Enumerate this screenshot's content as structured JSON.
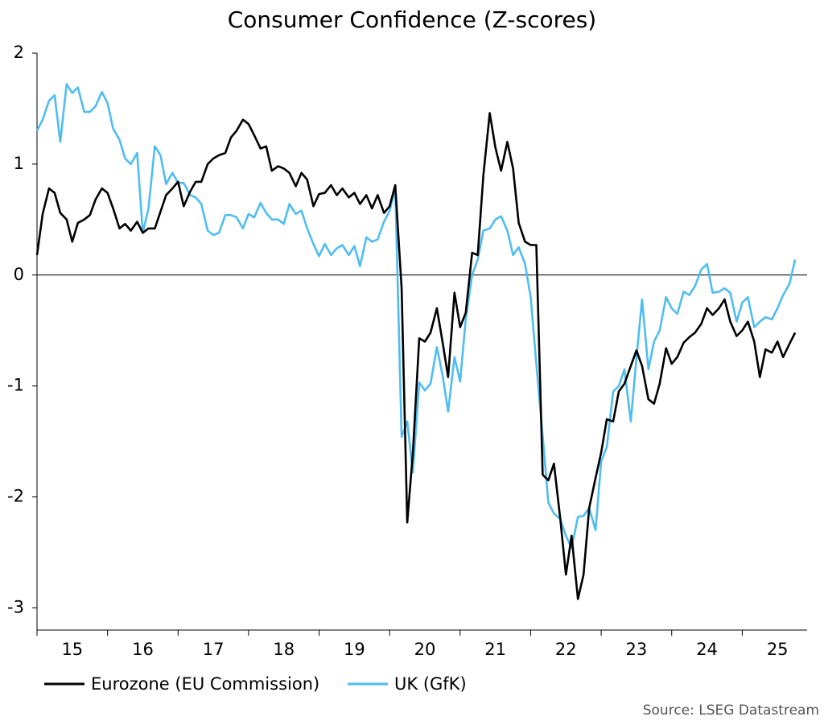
{
  "chart_data": {
    "type": "line",
    "title": "Consumer Confidence (Z-scores)",
    "source": "Source: LSEG Datastream",
    "xlim": [
      15,
      25.92
    ],
    "ylim": [
      -3.2,
      2
    ],
    "xticks": [
      {
        "value": 15.5,
        "label": "15"
      },
      {
        "value": 16.5,
        "label": "16"
      },
      {
        "value": 17.5,
        "label": "17"
      },
      {
        "value": 18.5,
        "label": "18"
      },
      {
        "value": 19.5,
        "label": "19"
      },
      {
        "value": 20.5,
        "label": "20"
      },
      {
        "value": 21.5,
        "label": "21"
      },
      {
        "value": 22.5,
        "label": "22"
      },
      {
        "value": 23.5,
        "label": "23"
      },
      {
        "value": 24.5,
        "label": "24"
      },
      {
        "value": 25.5,
        "label": "25"
      }
    ],
    "yticks": [
      -3,
      -2,
      -1,
      0,
      1,
      2
    ],
    "zero_line": true,
    "x": [
      15.0,
      15.08,
      15.17,
      15.25,
      15.33,
      15.42,
      15.5,
      15.58,
      15.67,
      15.75,
      15.83,
      15.92,
      16.0,
      16.08,
      16.17,
      16.25,
      16.33,
      16.42,
      16.5,
      16.58,
      16.67,
      16.75,
      16.83,
      16.92,
      17.0,
      17.08,
      17.17,
      17.25,
      17.33,
      17.42,
      17.5,
      17.58,
      17.67,
      17.75,
      17.83,
      17.92,
      18.0,
      18.08,
      18.17,
      18.25,
      18.33,
      18.42,
      18.5,
      18.58,
      18.67,
      18.75,
      18.83,
      18.92,
      19.0,
      19.08,
      19.17,
      19.25,
      19.33,
      19.42,
      19.5,
      19.58,
      19.67,
      19.75,
      19.83,
      19.92,
      20.0,
      20.08,
      20.17,
      20.25,
      20.33,
      20.42,
      20.5,
      20.58,
      20.67,
      20.75,
      20.83,
      20.92,
      21.0,
      21.08,
      21.17,
      21.25,
      21.33,
      21.42,
      21.5,
      21.58,
      21.67,
      21.75,
      21.83,
      21.92,
      22.0,
      22.08,
      22.17,
      22.25,
      22.33,
      22.42,
      22.5,
      22.58,
      22.67,
      22.75,
      22.83,
      22.92,
      23.0,
      23.08,
      23.17,
      23.25,
      23.33,
      23.42,
      23.5,
      23.58,
      23.67,
      23.75,
      23.83,
      23.92,
      24.0,
      24.08,
      24.17,
      24.25,
      24.33,
      24.42,
      24.5,
      24.58,
      24.67,
      24.75,
      24.83,
      24.92,
      25.0,
      25.08,
      25.17,
      25.25,
      25.33,
      25.42,
      25.5,
      25.58,
      25.67,
      25.75
    ],
    "series": [
      {
        "name": "Eurozone (EU Commission)",
        "color": "#000000",
        "values": [
          0.18,
          0.55,
          0.78,
          0.74,
          0.56,
          0.5,
          0.3,
          0.47,
          0.5,
          0.54,
          0.68,
          0.78,
          0.74,
          0.6,
          0.42,
          0.46,
          0.4,
          0.48,
          0.38,
          0.42,
          0.42,
          0.57,
          0.72,
          0.78,
          0.84,
          0.62,
          0.75,
          0.84,
          0.84,
          1.0,
          1.05,
          1.08,
          1.1,
          1.24,
          1.3,
          1.4,
          1.36,
          1.26,
          1.14,
          1.16,
          0.94,
          0.98,
          0.96,
          0.92,
          0.8,
          0.92,
          0.86,
          0.62,
          0.73,
          0.74,
          0.81,
          0.72,
          0.78,
          0.7,
          0.74,
          0.64,
          0.72,
          0.6,
          0.72,
          0.56,
          0.62,
          0.81,
          -0.12,
          -2.23,
          -1.6,
          -0.57,
          -0.6,
          -0.52,
          -0.3,
          -0.6,
          -0.92,
          -0.16,
          -0.47,
          -0.34,
          0.2,
          0.18,
          0.9,
          1.46,
          1.15,
          0.94,
          1.2,
          0.96,
          0.47,
          0.3,
          0.27,
          0.27,
          -1.8,
          -1.85,
          -1.7,
          -2.2,
          -2.7,
          -2.35,
          -2.92,
          -2.7,
          -2.1,
          -1.83,
          -1.6,
          -1.3,
          -1.32,
          -1.05,
          -0.98,
          -0.82,
          -0.68,
          -0.82,
          -1.12,
          -1.16,
          -0.98,
          -0.66,
          -0.8,
          -0.74,
          -0.61,
          -0.56,
          -0.52,
          -0.44,
          -0.3,
          -0.36,
          -0.3,
          -0.22,
          -0.42,
          -0.55,
          -0.5,
          -0.42,
          -0.6,
          -0.92,
          -0.67,
          -0.7,
          -0.6,
          -0.74,
          -0.62,
          -0.52
        ]
      },
      {
        "name": "UK (GfK)",
        "color": "#4fbdf2",
        "values": [
          1.3,
          1.4,
          1.57,
          1.62,
          1.2,
          1.72,
          1.64,
          1.69,
          1.47,
          1.47,
          1.52,
          1.65,
          1.55,
          1.32,
          1.22,
          1.05,
          1.0,
          1.1,
          0.38,
          0.6,
          1.16,
          1.08,
          0.82,
          0.92,
          0.83,
          0.83,
          0.72,
          0.7,
          0.64,
          0.4,
          0.36,
          0.38,
          0.54,
          0.54,
          0.52,
          0.42,
          0.55,
          0.52,
          0.65,
          0.56,
          0.5,
          0.5,
          0.46,
          0.64,
          0.55,
          0.58,
          0.42,
          0.28,
          0.17,
          0.28,
          0.18,
          0.24,
          0.27,
          0.18,
          0.26,
          0.08,
          0.34,
          0.3,
          0.32,
          0.48,
          0.58,
          0.78,
          -1.46,
          -1.32,
          -1.78,
          -0.97,
          -1.04,
          -0.98,
          -0.65,
          -0.9,
          -1.23,
          -0.74,
          -0.96,
          -0.4,
          0.0,
          0.14,
          0.4,
          0.42,
          0.5,
          0.53,
          0.4,
          0.18,
          0.25,
          0.1,
          -0.2,
          -0.8,
          -1.45,
          -2.05,
          -2.15,
          -2.2,
          -2.35,
          -2.46,
          -2.18,
          -2.17,
          -2.1,
          -2.3,
          -1.68,
          -1.55,
          -1.05,
          -1.0,
          -0.85,
          -1.32,
          -0.75,
          -0.22,
          -0.85,
          -0.6,
          -0.5,
          -0.2,
          -0.3,
          -0.35,
          -0.15,
          -0.18,
          -0.1,
          0.05,
          0.1,
          -0.16,
          -0.15,
          -0.12,
          -0.16,
          -0.42,
          -0.25,
          -0.2,
          -0.47,
          -0.42,
          -0.38,
          -0.4,
          -0.3,
          -0.18,
          -0.08,
          0.14
        ]
      }
    ]
  }
}
